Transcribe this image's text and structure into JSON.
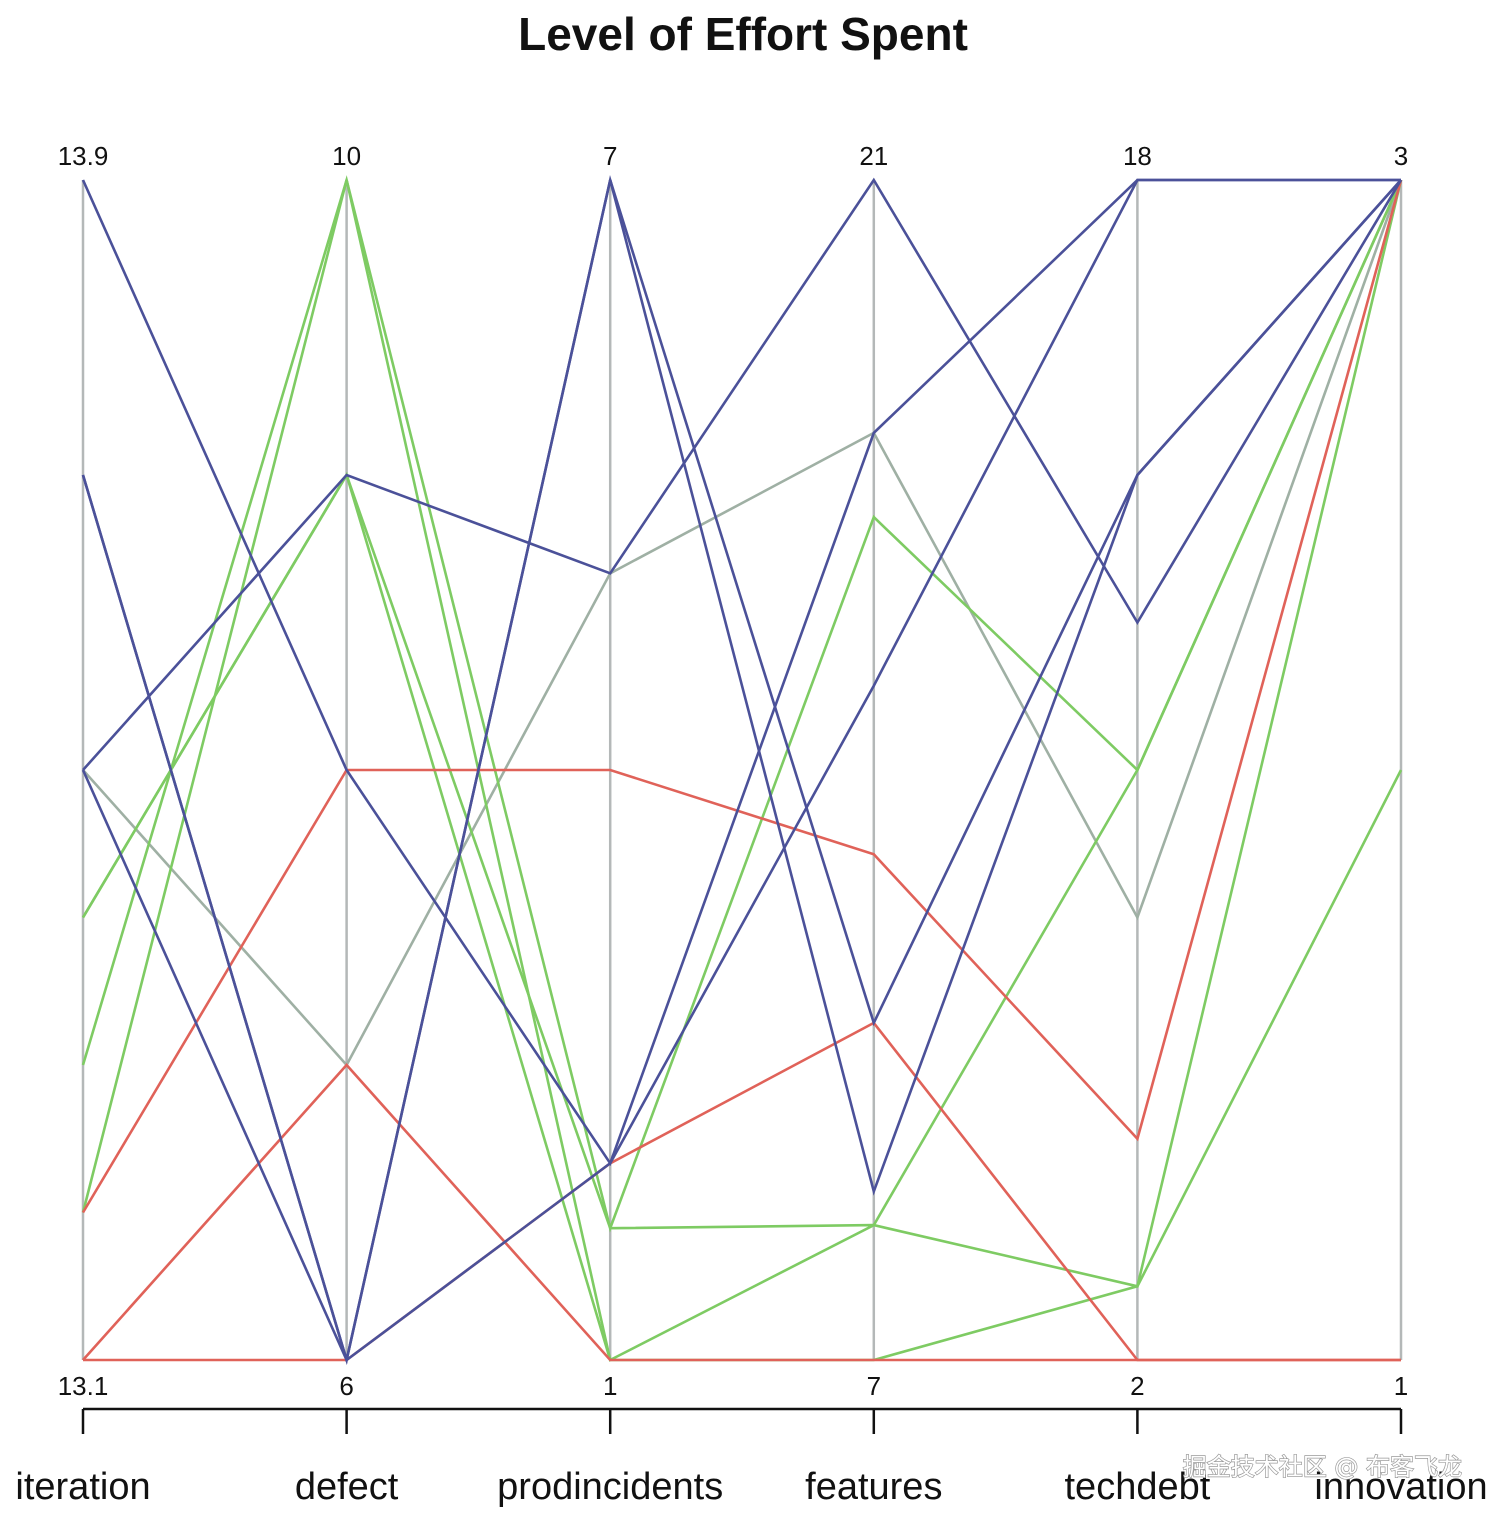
{
  "chart_data": {
    "type": "parallel_coordinates",
    "title": "Level of Effort Spent",
    "axes": [
      {
        "name": "iteration",
        "min": 13.1,
        "max": 13.9,
        "min_label": "13.1",
        "max_label": "13.9"
      },
      {
        "name": "defect",
        "min": 6,
        "max": 10,
        "min_label": "6",
        "max_label": "10"
      },
      {
        "name": "prodincidents",
        "min": 1,
        "max": 7,
        "min_label": "1",
        "max_label": "7"
      },
      {
        "name": "features",
        "min": 7,
        "max": 21,
        "min_label": "7",
        "max_label": "21"
      },
      {
        "name": "techdebt",
        "min": 2,
        "max": 18,
        "min_label": "2",
        "max_label": "18"
      },
      {
        "name": "innovation",
        "min": 1,
        "max": 3,
        "min_label": "1",
        "max_label": "3"
      }
    ],
    "series_colors": {
      "blue": "#4b5199",
      "green": "#7ecb63",
      "gray": "#9fb0a4",
      "red": "#e06259"
    },
    "records": [
      {
        "group": "blue",
        "values": [
          13.9,
          8.0,
          2.0,
          18.0,
          18.0,
          3
        ]
      },
      {
        "group": "blue",
        "values": [
          13.5,
          6.0,
          7.0,
          11.0,
          14.0,
          3
        ]
      },
      {
        "group": "blue",
        "values": [
          13.5,
          9.0,
          5.0,
          21.0,
          12.0,
          3
        ]
      },
      {
        "group": "blue",
        "values": [
          13.7,
          6.0,
          7.0,
          9.0,
          14.0,
          3
        ]
      },
      {
        "group": "blue",
        "values": [
          13.7,
          6.0,
          2.0,
          15.0,
          18.0,
          3
        ]
      },
      {
        "group": "green",
        "values": [
          13.4,
          9.0,
          1.0,
          7.0,
          3.0,
          2
        ]
      },
      {
        "group": "green",
        "values": [
          13.3,
          10.0,
          1.67,
          17.0,
          10.0,
          3
        ]
      },
      {
        "group": "green",
        "values": [
          13.4,
          9.0,
          1.67,
          8.6,
          3.0,
          3
        ]
      },
      {
        "group": "green",
        "values": [
          13.2,
          10.0,
          1.0,
          8.6,
          10.0,
          3
        ]
      },
      {
        "group": "gray",
        "values": [
          13.5,
          7.0,
          5.0,
          18.0,
          8.0,
          3
        ]
      },
      {
        "group": "red",
        "values": [
          13.2,
          8.0,
          4.0,
          13.0,
          5.0,
          3
        ]
      },
      {
        "group": "red",
        "values": [
          13.1,
          6.0,
          2.0,
          11.0,
          2.0,
          1
        ]
      },
      {
        "group": "red",
        "values": [
          13.1,
          7.0,
          1.0,
          7.0,
          2.0,
          1
        ]
      }
    ],
    "watermark": "掘金技术社区 @ 布客飞龙"
  }
}
